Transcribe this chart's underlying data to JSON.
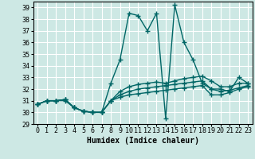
{
  "xlabel": "Humidex (Indice chaleur)",
  "background_color": "#cde8e4",
  "line_color": "#006666",
  "grid_color": "#ffffff",
  "xlim": [
    -0.5,
    23.5
  ],
  "ylim": [
    29,
    39.5
  ],
  "yticks": [
    29,
    30,
    31,
    32,
    33,
    34,
    35,
    36,
    37,
    38,
    39
  ],
  "xticks": [
    0,
    1,
    2,
    3,
    4,
    5,
    6,
    7,
    8,
    9,
    10,
    11,
    12,
    13,
    14,
    15,
    16,
    17,
    18,
    19,
    20,
    21,
    22,
    23
  ],
  "series": [
    [
      30.7,
      31.0,
      31.0,
      31.0,
      30.4,
      30.1,
      30.0,
      30.0,
      32.5,
      34.5,
      38.5,
      38.3,
      37.0,
      38.5,
      29.5,
      39.2,
      36.0,
      34.5,
      32.5,
      32.0,
      32.0,
      31.8,
      33.0,
      32.5
    ],
    [
      30.7,
      31.0,
      31.0,
      31.1,
      30.4,
      30.1,
      30.0,
      30.0,
      31.0,
      31.8,
      32.2,
      32.4,
      32.5,
      32.6,
      32.5,
      32.7,
      32.9,
      33.0,
      33.1,
      32.7,
      32.2,
      32.2,
      32.5,
      32.5
    ],
    [
      30.7,
      31.0,
      31.0,
      31.1,
      30.4,
      30.1,
      30.0,
      30.0,
      31.0,
      31.5,
      31.8,
      32.0,
      32.1,
      32.2,
      32.3,
      32.4,
      32.5,
      32.6,
      32.7,
      32.0,
      31.8,
      31.9,
      32.1,
      32.3
    ],
    [
      30.7,
      31.0,
      31.0,
      31.1,
      30.4,
      30.1,
      30.0,
      30.0,
      31.0,
      31.3,
      31.5,
      31.6,
      31.7,
      31.8,
      31.9,
      32.0,
      32.1,
      32.2,
      32.3,
      31.5,
      31.5,
      31.7,
      32.0,
      32.2
    ]
  ],
  "marker": "+",
  "markersize": 4,
  "linewidth": 1.0,
  "tick_fontsize": 6,
  "xlabel_fontsize": 7
}
